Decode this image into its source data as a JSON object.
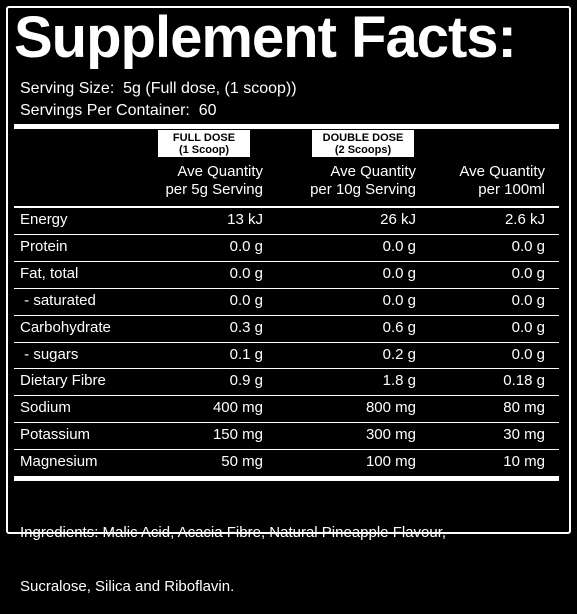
{
  "header": {
    "title": "Supplement Facts:",
    "serving_size": "Serving Size:  5g (Full dose, (1 scoop))",
    "servings_per_container": "Servings Per Container:  60"
  },
  "table": {
    "badges": [
      {
        "line1": "FULL DOSE",
        "line2": "(1 Scoop)"
      },
      {
        "line1": "DOUBLE DOSE",
        "line2": "(2 Scoops)"
      }
    ],
    "columns": [
      [
        "Ave Quantity",
        "per 5g Serving"
      ],
      [
        "Ave Quantity",
        "per 10g Serving"
      ],
      [
        "Ave Quantity",
        "per 100ml"
      ]
    ],
    "rows": [
      [
        "Energy",
        "13 kJ",
        "26 kJ",
        "2.6 kJ"
      ],
      [
        "Protein",
        "0.0 g",
        "0.0 g",
        "0.0 g"
      ],
      [
        "Fat, total",
        "0.0 g",
        "0.0 g",
        "0.0 g"
      ],
      [
        " - saturated",
        "0.0 g",
        "0.0 g",
        "0.0 g"
      ],
      [
        "Carbohydrate",
        "0.3 g",
        "0.6 g",
        "0.0 g"
      ],
      [
        " - sugars",
        "0.1 g",
        "0.2 g",
        "0.0 g"
      ],
      [
        "Dietary Fibre",
        "0.9 g",
        "1.8 g",
        "0.18 g"
      ],
      [
        "Sodium",
        "400 mg",
        "800 mg",
        "80 mg"
      ],
      [
        "Potassium",
        "150 mg",
        "300 mg",
        "30 mg"
      ],
      [
        "Magnesium",
        "50 mg",
        "100 mg",
        "10 mg"
      ]
    ]
  },
  "ingredients": [
    "Ingredients: Malic Acid, Acacia Fibre, Natural Pineapple Flavour,",
    "Sucralose, Silica and Riboflavin."
  ]
}
